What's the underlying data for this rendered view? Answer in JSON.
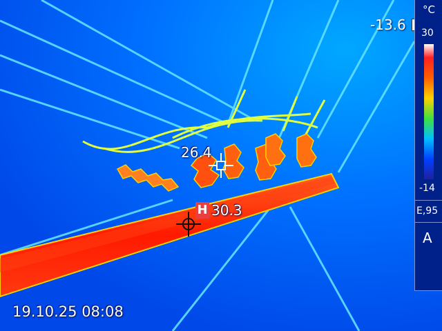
{
  "readouts": {
    "center_spot": "26.4",
    "hot_spot_badge": "H",
    "hot_spot": "30.3",
    "min_temp": "-13.6"
  },
  "timestamp": "19.10.25 08:08",
  "scale": {
    "unit": "°C",
    "max": "30",
    "min": "-14",
    "emissivity": "E,95",
    "mode": "A"
  },
  "colors": {
    "background": "#0050f0",
    "hot": "#ff1a00",
    "warm": "#ff8000",
    "wire": "#60e0ff",
    "wire_warm": "#e0ff40"
  },
  "icons": {
    "center_marker": "crosshair-icon",
    "hot_marker": "target-crosshair-icon"
  }
}
